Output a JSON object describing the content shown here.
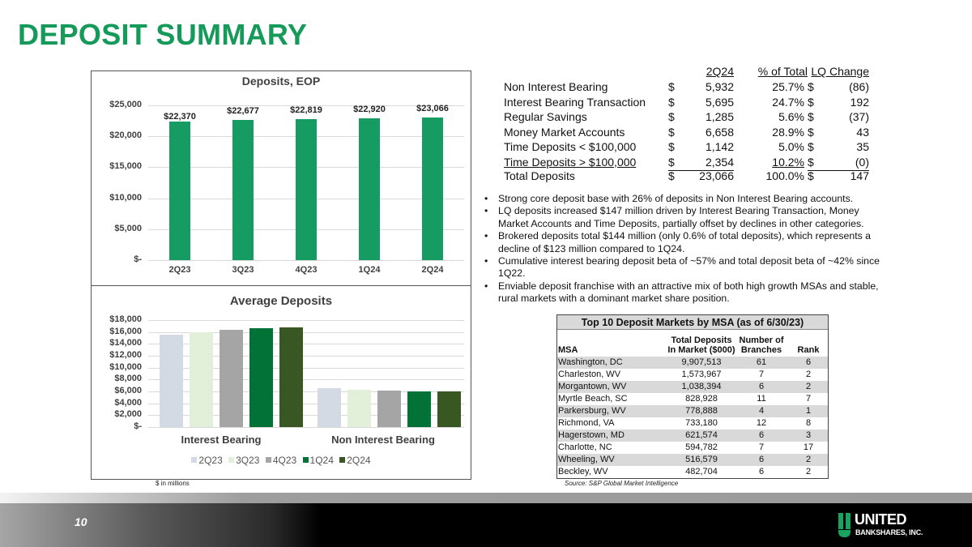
{
  "header": {
    "title": "DEPOSIT SUMMARY"
  },
  "colors": {
    "brand_green": "#159a5a",
    "eop_bar": "#169b62",
    "avg_series": [
      "#d3dae4",
      "#e2efd9",
      "#a5a5a5",
      "#037236",
      "#385723"
    ]
  },
  "chart_data": [
    {
      "type": "bar",
      "title": "Deposits, EOP",
      "categories": [
        "2Q23",
        "3Q23",
        "4Q23",
        "1Q24",
        "2Q24"
      ],
      "values": [
        22370,
        22677,
        22819,
        22920,
        23066
      ],
      "data_labels": [
        "$22,370",
        "$22,677",
        "$22,819",
        "$22,920",
        "$23,066"
      ],
      "yticks": [
        "$-",
        "$5,000",
        "$10,000",
        "$15,000",
        "$20,000",
        "$25,000"
      ],
      "ylim": [
        0,
        25000
      ],
      "xlabel": "",
      "ylabel": "",
      "grid": true,
      "legend": null
    },
    {
      "type": "bar",
      "title": "Average Deposits",
      "categories": [
        "Interest Bearing",
        "Non Interest Bearing"
      ],
      "series": [
        {
          "name": "2Q23",
          "values": [
            15500,
            6500
          ]
        },
        {
          "name": "3Q23",
          "values": [
            16000,
            6300
          ]
        },
        {
          "name": "4Q23",
          "values": [
            16400,
            6200
          ]
        },
        {
          "name": "1Q24",
          "values": [
            16700,
            5950
          ]
        },
        {
          "name": "2Q24",
          "values": [
            16750,
            5950
          ]
        }
      ],
      "yticks": [
        "$-",
        "$2,000",
        "$4,000",
        "$6,000",
        "$8,000",
        "$10,000",
        "$12,000",
        "$14,000",
        "$16,000",
        "$18,000"
      ],
      "ylim": [
        0,
        18000
      ],
      "grid": true,
      "legend_position": "bottom"
    },
    {
      "type": "table",
      "title": "Deposit Composition",
      "columns": [
        "",
        "2Q24",
        "% of Total",
        "LQ Change"
      ],
      "rows": [
        [
          "Non Interest Bearing",
          "5,932",
          "25.7%",
          "(86)"
        ],
        [
          "Interest Bearing Transaction",
          "5,695",
          "24.7%",
          "192"
        ],
        [
          "Regular Savings",
          "1,285",
          "5.6%",
          "(37)"
        ],
        [
          "Money Market Accounts",
          "6,658",
          "28.9%",
          "43"
        ],
        [
          "Time Deposits < $100,000",
          "1,142",
          "5.0%",
          "35"
        ],
        [
          "Time Deposits > $100,000",
          "2,354",
          "10.2%",
          "(0)"
        ],
        [
          "Total Deposits",
          "23,066",
          "100.0%",
          "147"
        ]
      ]
    }
  ],
  "eop_chart": {
    "title": "Deposits, EOP",
    "yticks": [
      "$25,000",
      "$20,000",
      "$15,000",
      "$10,000",
      "$5,000",
      "$-"
    ],
    "bars": [
      {
        "cat": "2Q23",
        "label": "$22,370"
      },
      {
        "cat": "3Q23",
        "label": "$22,677"
      },
      {
        "cat": "4Q23",
        "label": "$22,819"
      },
      {
        "cat": "1Q24",
        "label": "$22,920"
      },
      {
        "cat": "2Q24",
        "label": "$23,066"
      }
    ]
  },
  "avg_chart": {
    "title": "Average Deposits",
    "yticks": [
      "$18,000",
      "$16,000",
      "$14,000",
      "$12,000",
      "$10,000",
      "$8,000",
      "$6,000",
      "$4,000",
      "$2,000",
      "$-"
    ],
    "categories": [
      "Interest Bearing",
      "Non Interest Bearing"
    ],
    "legend": [
      "2Q23",
      "3Q23",
      "4Q23",
      "1Q24",
      "2Q24"
    ]
  },
  "summary_table": {
    "headers": {
      "period": "2Q24",
      "pct": "% of Total",
      "change": "LQ Change"
    },
    "currency": "$",
    "rows": [
      {
        "name": "Non Interest Bearing",
        "value": "5,932",
        "pct": "25.7%",
        "change": "(86)"
      },
      {
        "name": "Interest Bearing Transaction",
        "value": "5,695",
        "pct": "24.7%",
        "change": "192"
      },
      {
        "name": "Regular Savings",
        "value": "1,285",
        "pct": "5.6%",
        "change": "(37)"
      },
      {
        "name": "Money Market Accounts",
        "value": "6,658",
        "pct": "28.9%",
        "change": "43"
      },
      {
        "name": "Time Deposits < $100,000",
        "value": "1,142",
        "pct": "5.0%",
        "change": "35"
      },
      {
        "name": "Time Deposits > $100,000",
        "value": "2,354",
        "pct": "10.2%",
        "change": "(0)"
      }
    ],
    "total": {
      "name": "Total Deposits",
      "value": "23,066",
      "pct": "100.0%",
      "change": "147"
    }
  },
  "bullets": [
    "Strong core deposit base with 26% of deposits in Non Interest Bearing accounts.",
    "LQ deposits increased $147 million driven by Interest Bearing Transaction, Money Market Accounts and Time Deposits, partially offset by declines in other categories.",
    "Brokered deposits total $144 million (only 0.6% of total deposits), which represents a decline of $123 million compared to 1Q24.",
    "Cumulative interest bearing deposit beta of ~57% and total deposit beta of ~42% since 1Q22.",
    "Enviable deposit franchise with an attractive mix of both high growth MSAs and stable, rural markets with a dominant market share position."
  ],
  "msa_table": {
    "title": "Top 10 Deposit Markets by MSA (as of 6/30/23)",
    "headers": {
      "msa": "MSA",
      "deposits_1": "Total Deposits",
      "deposits_2": "In Market ($000)",
      "branches_1": "Number of",
      "branches_2": "Branches",
      "rank": "Rank"
    },
    "rows": [
      {
        "msa": "Washington, DC",
        "deposits": "9,907,513",
        "branches": "61",
        "rank": "6"
      },
      {
        "msa": "Charleston, WV",
        "deposits": "1,573,967",
        "branches": "7",
        "rank": "2"
      },
      {
        "msa": "Morgantown, WV",
        "deposits": "1,038,394",
        "branches": "6",
        "rank": "2"
      },
      {
        "msa": "Myrtle Beach, SC",
        "deposits": "828,928",
        "branches": "11",
        "rank": "7"
      },
      {
        "msa": "Parkersburg, WV",
        "deposits": "778,888",
        "branches": "4",
        "rank": "1"
      },
      {
        "msa": "Richmond, VA",
        "deposits": "733,180",
        "branches": "12",
        "rank": "8"
      },
      {
        "msa": "Hagerstown, MD",
        "deposits": "621,574",
        "branches": "6",
        "rank": "3"
      },
      {
        "msa": "Charlotte, NC",
        "deposits": "594,782",
        "branches": "7",
        "rank": "17"
      },
      {
        "msa": "Wheeling, WV",
        "deposits": "516,579",
        "branches": "6",
        "rank": "2"
      },
      {
        "msa": "Beckley, WV",
        "deposits": "482,704",
        "branches": "6",
        "rank": "2"
      }
    ]
  },
  "footnotes": {
    "units": "$ in millions",
    "source": "Source: S&P Global Market Intelligence"
  },
  "footer": {
    "page_number": "10",
    "logo_line1": "UNITED",
    "logo_line2": "BANKSHARES, INC."
  }
}
